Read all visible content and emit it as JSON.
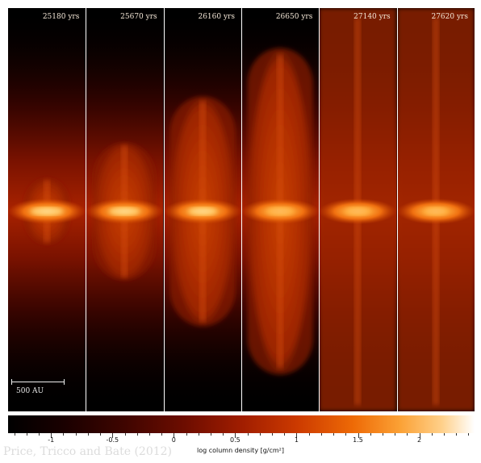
{
  "panels": [
    {
      "time": "25180 yrs",
      "lobe_height": 0.16
    },
    {
      "time": "25670 yrs",
      "lobe_height": 0.34
    },
    {
      "time": "26160 yrs",
      "lobe_height": 0.57
    },
    {
      "time": "26650 yrs",
      "lobe_height": 0.81
    },
    {
      "time": "27140 yrs",
      "lobe_height": 1.0
    },
    {
      "time": "27620 yrs",
      "lobe_height": 1.0
    }
  ],
  "scale_bar": {
    "label": "500 AU"
  },
  "colorbar": {
    "title": "log column density [g/cm²]",
    "min": -1.35,
    "max": 2.45,
    "ticks": [
      "-1",
      "-0.5",
      "0",
      "0.5",
      "1",
      "1.5",
      "2"
    ],
    "colors": [
      "#000000",
      "#3f0500",
      "#a01d00",
      "#ee6a06",
      "#ffd08a",
      "#ffffff"
    ]
  },
  "credit": "Price, Tricco and Bate (2012)"
}
